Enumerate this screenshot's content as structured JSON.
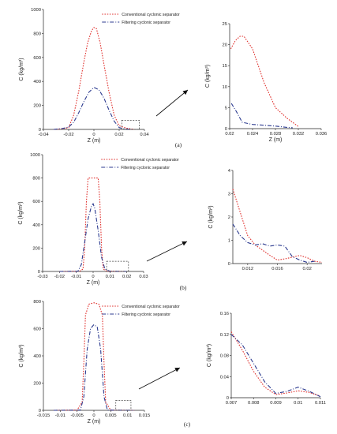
{
  "colors": {
    "conventional": "#e0322f",
    "filtering": "#2b3a8f",
    "axis": "#222222",
    "zoom_box": "#444444",
    "arrow": "#111111"
  },
  "legend": {
    "conventional": "Conventional cyclonic separator",
    "filtering": "Filtering cyclonic separator"
  },
  "panel_labels": [
    "(a)",
    "(b)",
    "(c)"
  ],
  "chart_data": [
    {
      "type": "line",
      "panel": "a-main",
      "xlabel": "Z (m)",
      "ylabel": "C (kg/m³)",
      "xlim": [
        -0.04,
        0.04
      ],
      "ylim": [
        0,
        1000
      ],
      "xticks": [
        "-0.04",
        "-0.02",
        "0",
        "0.02",
        "0.04"
      ],
      "xtick_values": [
        -0.04,
        -0.02,
        0,
        0.02,
        0.04
      ],
      "yticks": [
        "0",
        "200",
        "400",
        "600",
        "800",
        "1000"
      ],
      "ytick_values": [
        0,
        200,
        400,
        600,
        800,
        1000
      ],
      "zoom_box": {
        "x": [
          0.022,
          0.036
        ],
        "y": [
          0,
          50
        ]
      },
      "series": [
        {
          "name": "Conventional cyclonic separator",
          "style": "dotted",
          "x": [
            -0.032,
            -0.025,
            -0.02,
            -0.016,
            -0.012,
            -0.008,
            -0.005,
            -0.002,
            0,
            0.002,
            0.005,
            0.008,
            0.012,
            0.016,
            0.02,
            0.023,
            0.026,
            0.03,
            0.032
          ],
          "y": [
            0,
            5,
            15,
            120,
            320,
            560,
            720,
            820,
            850,
            840,
            720,
            540,
            310,
            120,
            30,
            20,
            10,
            3,
            0
          ]
        },
        {
          "name": "Filtering cyclonic separator",
          "style": "dashdot",
          "x": [
            -0.032,
            -0.025,
            -0.02,
            -0.016,
            -0.012,
            -0.008,
            -0.004,
            0,
            0.004,
            0.008,
            0.012,
            0.016,
            0.02,
            0.024,
            0.03
          ],
          "y": [
            0,
            8,
            20,
            60,
            140,
            230,
            310,
            350,
            330,
            260,
            160,
            70,
            15,
            5,
            0
          ]
        }
      ]
    },
    {
      "type": "line",
      "panel": "a-zoom",
      "xlabel": "Z (m)",
      "ylabel": "C (kg/m³)",
      "xlim": [
        0.02,
        0.036
      ],
      "ylim": [
        0,
        25
      ],
      "xticks": [
        "0.02",
        "0.024",
        "0.028",
        "0.032",
        "0.036"
      ],
      "xtick_values": [
        0.02,
        0.024,
        0.028,
        0.032,
        0.036
      ],
      "yticks": [
        "0",
        "5",
        "10",
        "15",
        "20",
        "25"
      ],
      "ytick_values": [
        0,
        5,
        10,
        15,
        20,
        25
      ],
      "series": [
        {
          "name": "Conventional cyclonic separator",
          "style": "dotted",
          "x": [
            0.0202,
            0.021,
            0.0218,
            0.0225,
            0.024,
            0.026,
            0.028,
            0.03,
            0.032
          ],
          "y": [
            19,
            21,
            22,
            22,
            19,
            11,
            5,
            2.5,
            0.5
          ]
        },
        {
          "name": "Filtering cyclonic separator",
          "style": "dashdot",
          "x": [
            0.0203,
            0.0212,
            0.0222,
            0.024,
            0.026,
            0.028,
            0.03,
            0.031
          ],
          "y": [
            6,
            4,
            1.5,
            1,
            0.8,
            0.6,
            0.3,
            0.2
          ]
        }
      ]
    },
    {
      "type": "line",
      "panel": "b-main",
      "xlabel": "Z (m)",
      "ylabel": "C (kg/m³)",
      "xlim": [
        -0.03,
        0.03
      ],
      "ylim": [
        0,
        1000
      ],
      "xticks": [
        "-0.03",
        "-0.02",
        "-0.01",
        "0",
        "0.01",
        "0.02",
        "0.03"
      ],
      "xtick_values": [
        -0.03,
        -0.02,
        -0.01,
        0,
        0.01,
        0.02,
        0.03
      ],
      "yticks": [
        "0",
        "200",
        "400",
        "600",
        "800",
        "1000"
      ],
      "ytick_values": [
        0,
        200,
        400,
        600,
        800,
        1000
      ],
      "zoom_box": {
        "x": [
          0.008,
          0.021
        ],
        "y": [
          0,
          60
        ]
      },
      "series": [
        {
          "name": "Conventional cyclonic separator",
          "style": "dotted",
          "x": [
            -0.02,
            -0.008,
            -0.006,
            -0.005,
            -0.004,
            -0.003,
            0,
            0.003,
            0.004,
            0.005,
            0.006,
            0.008,
            0.02
          ],
          "y": [
            0,
            2,
            20,
            200,
            600,
            800,
            800,
            800,
            600,
            200,
            20,
            3,
            0
          ]
        },
        {
          "name": "Filtering cyclonic separator",
          "style": "dashdot",
          "x": [
            -0.02,
            -0.009,
            -0.007,
            -0.005,
            -0.003,
            -0.001,
            0,
            0.001,
            0.003,
            0.005,
            0.007,
            0.01,
            0.02
          ],
          "y": [
            0,
            2,
            60,
            250,
            450,
            560,
            580,
            540,
            350,
            120,
            20,
            2,
            0
          ]
        }
      ]
    },
    {
      "type": "line",
      "panel": "b-zoom",
      "xlabel": "",
      "ylabel": "C (kg/m³)",
      "xlim": [
        0.01,
        0.022
      ],
      "ylim": [
        0,
        4
      ],
      "xticks": [
        "0.012",
        "0.016",
        "0.02"
      ],
      "xtick_values": [
        0.012,
        0.016,
        0.02
      ],
      "yticks": [
        "0",
        "1",
        "2",
        "3",
        "4"
      ],
      "ytick_values": [
        0,
        1,
        2,
        3,
        4
      ],
      "series": [
        {
          "name": "Conventional cyclonic separator",
          "style": "dotted",
          "x": [
            0.01,
            0.011,
            0.012,
            0.013,
            0.015,
            0.016,
            0.017,
            0.019,
            0.02,
            0.021,
            0.022
          ],
          "y": [
            3.2,
            2.2,
            1.2,
            0.8,
            0.35,
            0.15,
            0.2,
            0.35,
            0.25,
            0.1,
            0.05
          ]
        },
        {
          "name": "Filtering cyclonic separator",
          "style": "dashdot",
          "x": [
            0.01,
            0.011,
            0.012,
            0.013,
            0.014,
            0.015,
            0.016,
            0.017,
            0.018,
            0.019,
            0.02,
            0.021
          ],
          "y": [
            1.7,
            1.2,
            0.9,
            0.8,
            0.85,
            0.75,
            0.8,
            0.75,
            0.3,
            0.15,
            0.05,
            0.1
          ]
        }
      ]
    },
    {
      "type": "line",
      "panel": "c-main",
      "xlabel": "Z (m)",
      "ylabel": "C (kg/m³)",
      "xlim": [
        -0.015,
        0.015
      ],
      "ylim": [
        0,
        800
      ],
      "xticks": [
        "-0.015",
        "-0.01",
        "-0.005",
        "0",
        "0.005",
        "0.01",
        "0.015"
      ],
      "xtick_values": [
        -0.015,
        -0.01,
        -0.005,
        0,
        0.005,
        0.01,
        0.015
      ],
      "yticks": [
        "0",
        "200",
        "400",
        "600",
        "800"
      ],
      "ytick_values": [
        0,
        200,
        400,
        600,
        800
      ],
      "zoom_box": {
        "x": [
          0.0065,
          0.011
        ],
        "y": [
          0,
          50
        ]
      },
      "series": [
        {
          "name": "Conventional cyclonic separator",
          "style": "dotted",
          "x": [
            -0.012,
            -0.005,
            -0.0035,
            -0.003,
            -0.0025,
            -0.0015,
            0,
            0.0015,
            0.0025,
            0.003,
            0.0035,
            0.005,
            0.012
          ],
          "y": [
            0,
            2,
            60,
            350,
            700,
            780,
            790,
            780,
            700,
            350,
            60,
            2,
            0
          ]
        },
        {
          "name": "Filtering cyclonic separator",
          "style": "dashdot",
          "x": [
            -0.012,
            -0.004,
            -0.003,
            -0.002,
            -0.001,
            0,
            0.001,
            0.002,
            0.003,
            0.004,
            0.012
          ],
          "y": [
            0,
            2,
            100,
            450,
            600,
            630,
            610,
            450,
            100,
            2,
            0
          ]
        }
      ]
    },
    {
      "type": "line",
      "panel": "c-zoom",
      "xlabel": "",
      "ylabel": "C (kg/m³)",
      "xlim": [
        0.007,
        0.011
      ],
      "ylim": [
        0,
        0.16
      ],
      "xticks": [
        "0.007",
        "0.008",
        "0.009",
        "0.01",
        "0.011"
      ],
      "xtick_values": [
        0.007,
        0.008,
        0.009,
        0.01,
        0.011
      ],
      "yticks": [
        "0",
        "0.04",
        "0.08",
        "0.12",
        "0.16"
      ],
      "ytick_values": [
        0,
        0.04,
        0.08,
        0.12,
        0.16
      ],
      "series": [
        {
          "name": "Conventional cyclonic separator",
          "style": "dotted",
          "x": [
            0.007,
            0.0075,
            0.008,
            0.0085,
            0.009,
            0.0095,
            0.01,
            0.0105,
            0.011
          ],
          "y": [
            0.125,
            0.09,
            0.05,
            0.02,
            0.006,
            0.009,
            0.013,
            0.01,
            0.003
          ]
        },
        {
          "name": "Filtering cyclonic separator",
          "style": "dashdot",
          "x": [
            0.007,
            0.0075,
            0.008,
            0.0085,
            0.009,
            0.0095,
            0.01,
            0.0105,
            0.011
          ],
          "y": [
            0.12,
            0.1,
            0.065,
            0.03,
            0.008,
            0.012,
            0.02,
            0.012,
            0.002
          ]
        }
      ]
    }
  ]
}
